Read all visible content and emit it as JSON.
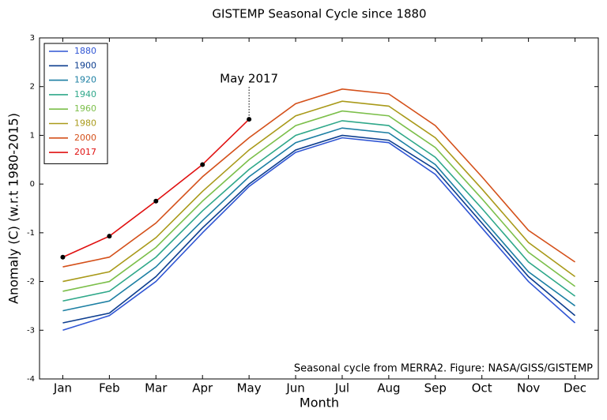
{
  "chart_data": {
    "type": "line",
    "title": "GISTEMP Seasonal Cycle since 1880",
    "x_label": "Month",
    "y_label": "Anomaly (C) (w.r.t 1980-2015)",
    "annotation": "May 2017",
    "footnote": "Seasonal cycle from MERRA2. Figure: NASA/GISS/GISTEMP",
    "categories": [
      "Jan",
      "Feb",
      "Mar",
      "Apr",
      "May",
      "Jun",
      "Jul",
      "Aug",
      "Sep",
      "Oct",
      "Nov",
      "Dec"
    ],
    "ylim": [
      -4,
      3
    ],
    "yticks": [
      -4,
      -3,
      -2,
      -1,
      0,
      1,
      2,
      3
    ],
    "legend": "upper left",
    "series": [
      {
        "name": "1880",
        "color": "#2f55d4",
        "values": [
          -3.0,
          -2.7,
          -2.0,
          -1.0,
          -0.05,
          0.65,
          0.95,
          0.85,
          0.2,
          -0.9,
          -2.0,
          -2.85
        ]
      },
      {
        "name": "1900",
        "color": "#0d3e8f",
        "values": [
          -2.85,
          -2.65,
          -1.9,
          -0.9,
          0.0,
          0.7,
          1.0,
          0.9,
          0.3,
          -0.8,
          -1.9,
          -2.7
        ]
      },
      {
        "name": "1920",
        "color": "#1c7fa3",
        "values": [
          -2.6,
          -2.4,
          -1.7,
          -0.75,
          0.15,
          0.85,
          1.15,
          1.05,
          0.4,
          -0.7,
          -1.8,
          -2.5
        ]
      },
      {
        "name": "1940",
        "color": "#2fa88a",
        "values": [
          -2.4,
          -2.2,
          -1.5,
          -0.55,
          0.3,
          1.0,
          1.3,
          1.2,
          0.55,
          -0.5,
          -1.6,
          -2.3
        ]
      },
      {
        "name": "1960",
        "color": "#7cbf4a",
        "values": [
          -2.2,
          -2.0,
          -1.3,
          -0.35,
          0.5,
          1.2,
          1.5,
          1.4,
          0.75,
          -0.3,
          -1.4,
          -2.1
        ]
      },
      {
        "name": "1980",
        "color": "#a99a1a",
        "values": [
          -2.0,
          -1.8,
          -1.1,
          -0.15,
          0.7,
          1.4,
          1.7,
          1.6,
          0.95,
          -0.1,
          -1.2,
          -1.9
        ]
      },
      {
        "name": "2000",
        "color": "#d4501a",
        "values": [
          -1.7,
          -1.5,
          -0.8,
          0.15,
          0.95,
          1.65,
          1.95,
          1.85,
          1.2,
          0.15,
          -0.95,
          -1.6
        ]
      },
      {
        "name": "2017",
        "color": "#e01010",
        "markers": true,
        "values": [
          -1.5,
          -1.07,
          -0.35,
          0.4,
          1.33,
          null,
          null,
          null,
          null,
          null,
          null,
          null
        ]
      }
    ]
  }
}
